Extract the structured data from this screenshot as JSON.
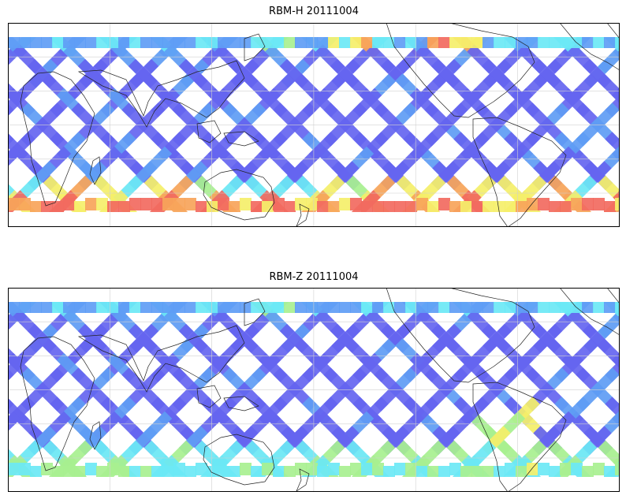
{
  "panels": [
    {
      "title": "RBM-H 20111004",
      "hot_south": true
    },
    {
      "title": "RBM-Z 20111004",
      "hot_south": false
    }
  ],
  "colors": {
    "track": "#6565f0",
    "track_light": "#5f9df5",
    "cyan": "#6be8f5",
    "green": "#a8f090",
    "yellow": "#f5ef6a",
    "orange": "#f7a45a",
    "red": "#f26a5f",
    "coast": "#222222",
    "grid": "#d0d0d0"
  },
  "map": {
    "projection": "equirectangular",
    "lon_range": [
      -20,
      340
    ],
    "lat_range": [
      -60,
      60
    ],
    "grid": true
  }
}
